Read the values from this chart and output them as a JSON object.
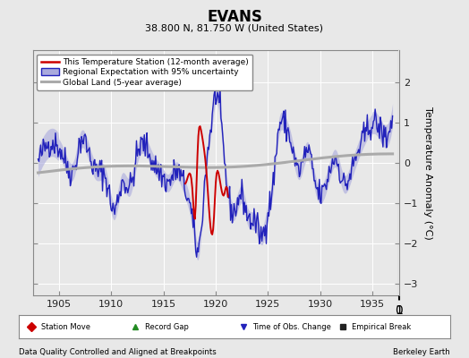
{
  "title": "EVANS",
  "subtitle": "38.800 N, 81.750 W (United States)",
  "xlabel_left": "Data Quality Controlled and Aligned at Breakpoints",
  "xlabel_right": "Berkeley Earth",
  "ylabel": "Temperature Anomaly (°C)",
  "xlim": [
    1902.5,
    1937.5
  ],
  "ylim": [
    -3.3,
    2.8
  ],
  "yticks": [
    -3,
    -2,
    -1,
    0,
    1,
    2
  ],
  "xticks": [
    1905,
    1910,
    1915,
    1920,
    1925,
    1930,
    1935
  ],
  "bg_color": "#e8e8e8",
  "plot_bg_color": "#e8e8e8",
  "regional_color": "#2222bb",
  "regional_shade_color": "#aaaadd",
  "station_color": "#cc0000",
  "global_color": "#aaaaaa",
  "legend_entries": [
    "This Temperature Station (12-month average)",
    "Regional Expectation with 95% uncertainty",
    "Global Land (5-year average)"
  ],
  "marker_legend": [
    {
      "label": "Station Move",
      "color": "#cc0000",
      "marker": "D"
    },
    {
      "label": "Record Gap",
      "color": "#228B22",
      "marker": "^"
    },
    {
      "label": "Time of Obs. Change",
      "color": "#2222bb",
      "marker": "v"
    },
    {
      "label": "Empirical Break",
      "color": "#222222",
      "marker": "s"
    }
  ]
}
